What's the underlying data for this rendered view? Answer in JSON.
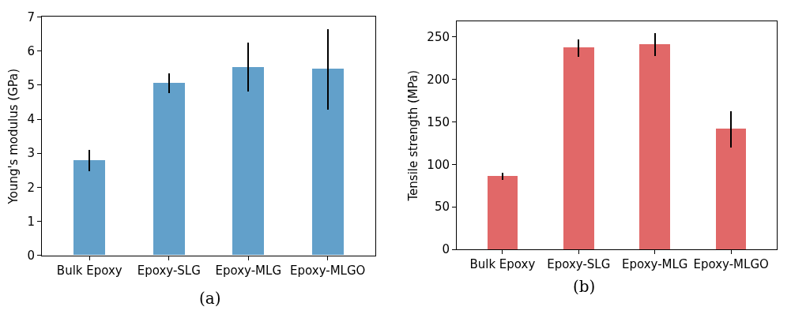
{
  "chart_data": [
    {
      "type": "bar",
      "categories": [
        "Bulk Epoxy",
        "Epoxy-SLG",
        "Epoxy-MLG",
        "Epoxy-MLGO"
      ],
      "ylabel": "Young's modulus (GPa)",
      "annotations": [
        "(a)"
      ],
      "values": [
        2.78,
        5.06,
        5.52,
        5.48
      ],
      "color": "#62a0ca",
      "errors": [
        [
          2.48,
          3.09
        ],
        [
          4.76,
          5.35
        ],
        [
          4.8,
          6.24
        ],
        [
          4.27,
          6.65
        ]
      ],
      "ylim": [
        0,
        7
      ],
      "yticks": [
        0,
        1,
        2,
        3,
        4,
        5,
        6,
        7
      ]
    },
    {
      "type": "bar",
      "categories": [
        "Bulk Epoxy",
        "Epoxy-SLG",
        "Epoxy-MLG",
        "Epoxy-MLGO"
      ],
      "ylabel": "Tensile strength (MPa)",
      "annotations": [
        "(b)"
      ],
      "values": [
        86,
        237,
        241,
        142
      ],
      "color": "#e16868",
      "errors": [
        [
          81.5,
          89.7
        ],
        [
          226.6,
          246.4
        ],
        [
          227.5,
          254.7
        ],
        [
          120,
          162.3
        ]
      ],
      "ylim": [
        0,
        268
      ],
      "yticks": [
        0,
        50,
        100,
        150,
        200,
        250
      ]
    }
  ]
}
